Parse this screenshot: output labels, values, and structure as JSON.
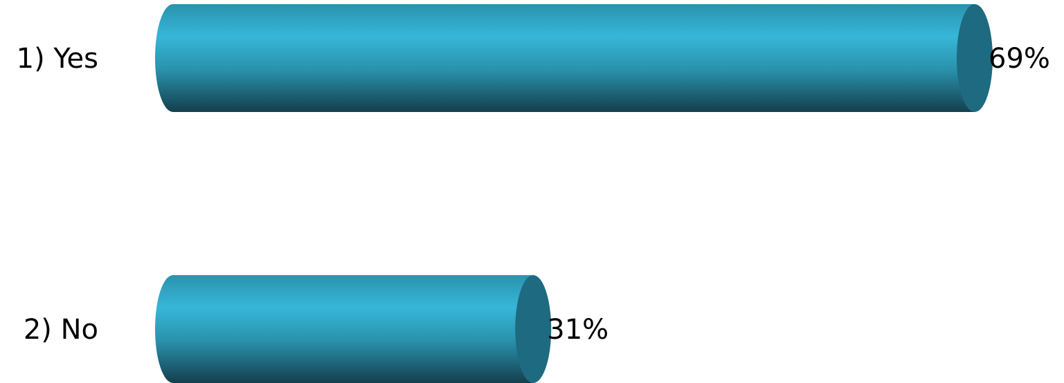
{
  "chart_data": {
    "type": "bar",
    "orientation": "horizontal",
    "style": "3d-cylinder",
    "categories": [
      "1) Yes",
      "2) No"
    ],
    "values": [
      69,
      31
    ],
    "value_labels": [
      "69%",
      "31%"
    ],
    "unit": "%",
    "title": "",
    "xlabel": "",
    "ylabel": "",
    "grid": false,
    "legend": "none"
  },
  "colors": {
    "bar_light": "#37b6d8",
    "bar_mid": "#2a93ad",
    "bar_dark": "#143f4e",
    "cap": "#1e6a80",
    "text": "#000000",
    "background": "#ffffff"
  }
}
